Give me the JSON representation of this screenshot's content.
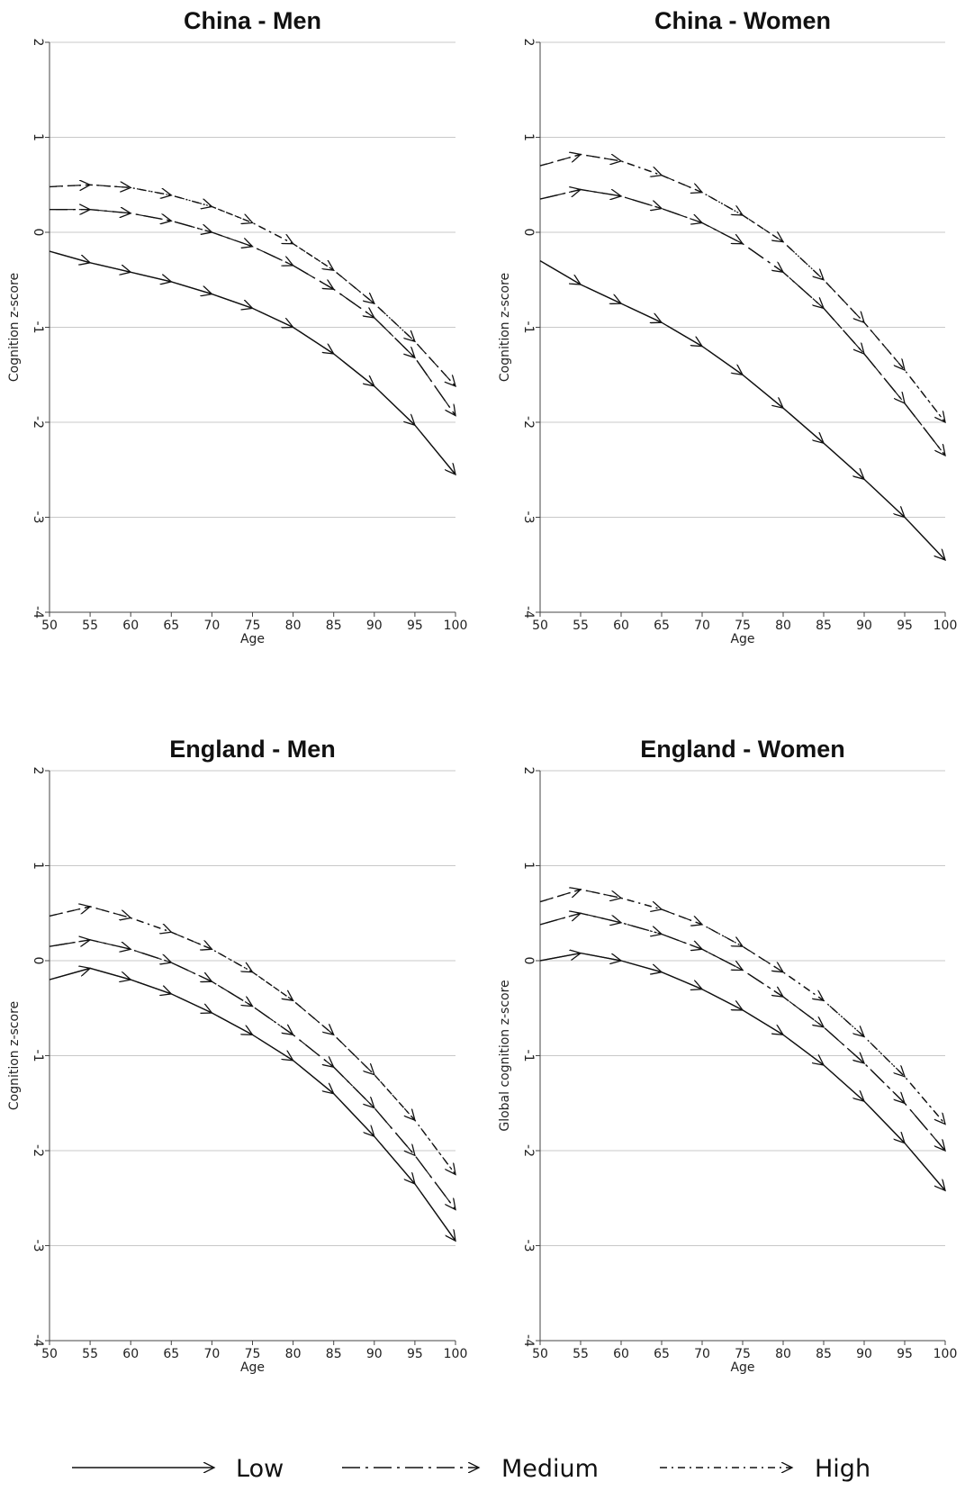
{
  "legend": {
    "items": [
      {
        "label": "Low",
        "dash": ""
      },
      {
        "label": "Medium",
        "dash": "20 6 3 6"
      },
      {
        "label": "High",
        "dash": "8 5 2 5"
      }
    ]
  },
  "chart_data": [
    {
      "type": "line",
      "title": "China - Men",
      "xlabel": "Age",
      "ylabel": "Cognition z-score",
      "xlim": [
        50,
        100
      ],
      "ylim": [
        -4,
        2
      ],
      "xticks": [
        50,
        55,
        60,
        65,
        70,
        75,
        80,
        85,
        90,
        95,
        100
      ],
      "yticks": [
        -4,
        -3,
        -2,
        -1,
        0,
        1,
        2
      ],
      "grid": true,
      "series": [
        {
          "name": "Low",
          "x": [
            50,
            55,
            60,
            65,
            70,
            75,
            80,
            85,
            90,
            95,
            100
          ],
          "y": [
            -0.2,
            -0.32,
            -0.42,
            -0.52,
            -0.65,
            -0.8,
            -1.0,
            -1.28,
            -1.62,
            -2.03,
            -2.55
          ]
        },
        {
          "name": "Medium",
          "x": [
            50,
            55,
            60,
            65,
            70,
            75,
            80,
            85,
            90,
            95,
            100
          ],
          "y": [
            0.24,
            0.24,
            0.2,
            0.12,
            0.0,
            -0.15,
            -0.35,
            -0.6,
            -0.9,
            -1.32,
            -1.93
          ]
        },
        {
          "name": "High",
          "x": [
            50,
            55,
            60,
            65,
            70,
            75,
            80,
            85,
            90,
            95,
            100
          ],
          "y": [
            0.48,
            0.5,
            0.47,
            0.39,
            0.27,
            0.1,
            -0.12,
            -0.4,
            -0.75,
            -1.15,
            -1.62
          ]
        }
      ]
    },
    {
      "type": "line",
      "title": "China - Women",
      "xlabel": "Age",
      "ylabel": "Cognition z-score",
      "xlim": [
        50,
        100
      ],
      "ylim": [
        -4,
        2
      ],
      "xticks": [
        50,
        55,
        60,
        65,
        70,
        75,
        80,
        85,
        90,
        95,
        100
      ],
      "yticks": [
        -4,
        -3,
        -2,
        -1,
        0,
        1,
        2
      ],
      "grid": true,
      "series": [
        {
          "name": "Low",
          "x": [
            50,
            55,
            60,
            65,
            70,
            75,
            80,
            85,
            90,
            95,
            100
          ],
          "y": [
            -0.3,
            -0.55,
            -0.75,
            -0.95,
            -1.2,
            -1.5,
            -1.85,
            -2.22,
            -2.6,
            -3.0,
            -3.45
          ]
        },
        {
          "name": "Medium",
          "x": [
            50,
            55,
            60,
            65,
            70,
            75,
            80,
            85,
            90,
            95,
            100
          ],
          "y": [
            0.35,
            0.45,
            0.38,
            0.25,
            0.1,
            -0.12,
            -0.42,
            -0.8,
            -1.28,
            -1.8,
            -2.35
          ]
        },
        {
          "name": "High",
          "x": [
            50,
            55,
            60,
            65,
            70,
            75,
            80,
            85,
            90,
            95,
            100
          ],
          "y": [
            0.7,
            0.82,
            0.75,
            0.6,
            0.42,
            0.18,
            -0.1,
            -0.5,
            -0.95,
            -1.45,
            -2.0
          ]
        }
      ]
    },
    {
      "type": "line",
      "title": "England - Men",
      "xlabel": "Age",
      "ylabel": "Cognition z-score",
      "xlim": [
        50,
        100
      ],
      "ylim": [
        -4,
        2
      ],
      "xticks": [
        50,
        55,
        60,
        65,
        70,
        75,
        80,
        85,
        90,
        95,
        100
      ],
      "yticks": [
        -4,
        -3,
        -2,
        -1,
        0,
        1,
        2
      ],
      "grid": true,
      "series": [
        {
          "name": "Low",
          "x": [
            50,
            55,
            60,
            65,
            70,
            75,
            80,
            85,
            90,
            95,
            100
          ],
          "y": [
            -0.2,
            -0.08,
            -0.2,
            -0.35,
            -0.55,
            -0.78,
            -1.05,
            -1.4,
            -1.85,
            -2.35,
            -2.95
          ]
        },
        {
          "name": "Medium",
          "x": [
            50,
            55,
            60,
            65,
            70,
            75,
            80,
            85,
            90,
            95,
            100
          ],
          "y": [
            0.15,
            0.22,
            0.12,
            -0.02,
            -0.22,
            -0.48,
            -0.78,
            -1.12,
            -1.55,
            -2.05,
            -2.62
          ]
        },
        {
          "name": "High",
          "x": [
            50,
            55,
            60,
            65,
            70,
            75,
            80,
            85,
            90,
            95,
            100
          ],
          "y": [
            0.47,
            0.57,
            0.45,
            0.3,
            0.12,
            -0.12,
            -0.42,
            -0.78,
            -1.2,
            -1.68,
            -2.25
          ]
        }
      ]
    },
    {
      "type": "line",
      "title": "England - Women",
      "xlabel": "Age",
      "ylabel": "Global cognition z-score",
      "xlim": [
        50,
        100
      ],
      "ylim": [
        -4,
        2
      ],
      "xticks": [
        50,
        55,
        60,
        65,
        70,
        75,
        80,
        85,
        90,
        95,
        100
      ],
      "yticks": [
        -4,
        -3,
        -2,
        -1,
        0,
        1,
        2
      ],
      "grid": true,
      "series": [
        {
          "name": "Low",
          "x": [
            50,
            55,
            60,
            65,
            70,
            75,
            80,
            85,
            90,
            95,
            100
          ],
          "y": [
            0.0,
            0.08,
            0.0,
            -0.12,
            -0.3,
            -0.52,
            -0.78,
            -1.1,
            -1.48,
            -1.92,
            -2.42
          ]
        },
        {
          "name": "Medium",
          "x": [
            50,
            55,
            60,
            65,
            70,
            75,
            80,
            85,
            90,
            95,
            100
          ],
          "y": [
            0.38,
            0.5,
            0.4,
            0.28,
            0.12,
            -0.1,
            -0.38,
            -0.7,
            -1.08,
            -1.5,
            -2.0
          ]
        },
        {
          "name": "High",
          "x": [
            50,
            55,
            60,
            65,
            70,
            75,
            80,
            85,
            90,
            95,
            100
          ],
          "y": [
            0.62,
            0.75,
            0.66,
            0.54,
            0.38,
            0.15,
            -0.12,
            -0.42,
            -0.8,
            -1.22,
            -1.72
          ]
        }
      ]
    }
  ]
}
